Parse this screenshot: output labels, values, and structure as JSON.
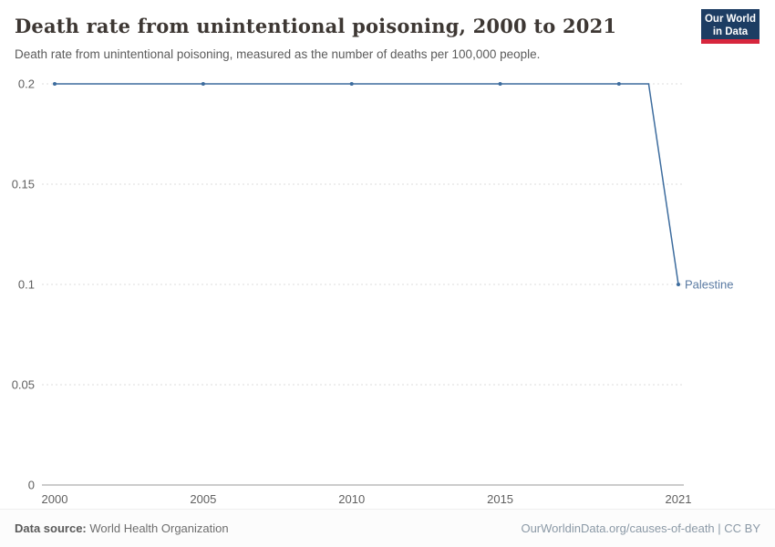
{
  "header": {
    "title": "Death rate from unintentional poisoning, 2000 to 2021",
    "subtitle": "Death rate from unintentional poisoning, measured as the number of deaths per 100,000 people.",
    "logo": {
      "line1": "Our World",
      "line2": "in Data"
    }
  },
  "chart_data": {
    "type": "line",
    "title": "Death rate from unintentional poisoning, 2000 to 2021",
    "xlabel": "",
    "ylabel": "Deaths per 100,000 people",
    "x": [
      2000,
      2001,
      2002,
      2003,
      2004,
      2005,
      2006,
      2007,
      2008,
      2009,
      2010,
      2011,
      2012,
      2013,
      2014,
      2015,
      2016,
      2017,
      2018,
      2019,
      2020,
      2021
    ],
    "series": [
      {
        "name": "Palestine",
        "values": [
          0.2,
          0.2,
          0.2,
          0.2,
          0.2,
          0.2,
          0.2,
          0.2,
          0.2,
          0.2,
          0.2,
          0.2,
          0.2,
          0.2,
          0.2,
          0.2,
          0.2,
          0.2,
          0.2,
          0.2,
          0.2,
          0.1
        ]
      }
    ],
    "marker_years": [
      2000,
      2005,
      2010,
      2015,
      2019,
      2021
    ],
    "xlim": [
      2000,
      2021
    ],
    "ylim": [
      0,
      0.2
    ],
    "xticks": [
      2000,
      2005,
      2010,
      2015,
      2021
    ],
    "yticks": [
      0,
      0.05,
      0.1,
      0.15,
      0.2
    ],
    "ytick_labels": [
      "0",
      "0.05",
      "0.1",
      "0.15",
      "0.2"
    ],
    "grid": "horizontal-dashed",
    "legend_position": "end-of-line-label",
    "end_label": "Palestine"
  },
  "footer": {
    "source_label": "Data source:",
    "source": "World Health Organization",
    "credit": "OurWorldinData.org/causes-of-death | CC BY"
  },
  "colors": {
    "line": "#3d6c9e",
    "end_label": "#5b7ba3",
    "grid": "#dcdcdc",
    "axis": "#999999",
    "tick_text": "#606060",
    "logo_bg": "#1d3d63",
    "logo_accent": "#d7263d"
  }
}
